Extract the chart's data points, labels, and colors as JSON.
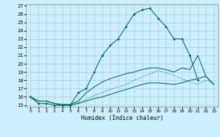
{
  "xlabel": "Humidex (Indice chaleur)",
  "bg_color": "#cceeff",
  "grid_color": "#aacccc",
  "line_color": "#006666",
  "xlim": [
    -0.5,
    23.5
  ],
  "ylim": [
    14.8,
    27.2
  ],
  "xticks": [
    0,
    1,
    2,
    3,
    4,
    5,
    6,
    7,
    8,
    9,
    10,
    11,
    12,
    13,
    14,
    15,
    16,
    17,
    18,
    19,
    20,
    21,
    22,
    23
  ],
  "yticks": [
    15,
    16,
    17,
    18,
    19,
    20,
    21,
    22,
    23,
    24,
    25,
    26,
    27
  ],
  "line1_x": [
    0,
    1,
    2,
    3,
    4,
    5,
    6,
    7,
    8,
    9,
    10,
    11,
    12,
    13,
    14,
    15,
    16,
    17,
    18,
    19,
    20,
    21
  ],
  "line1_y": [
    16,
    15.2,
    15.2,
    15,
    15,
    15,
    16.5,
    17,
    19,
    21,
    22.2,
    23,
    24.5,
    26,
    26.5,
    26.7,
    25.5,
    24.5,
    23,
    23,
    21,
    18
  ],
  "line2_x": [
    0,
    1,
    2,
    3,
    4,
    5,
    6,
    7,
    8,
    9,
    10,
    11,
    12,
    13,
    14,
    15,
    16,
    17,
    18,
    19,
    20,
    21,
    22,
    23
  ],
  "line2_y": [
    16,
    15.5,
    15.5,
    15.2,
    15.1,
    15.1,
    15.5,
    16.5,
    17.2,
    17.8,
    18.2,
    18.5,
    18.8,
    19.0,
    19.3,
    19.5,
    19.5,
    19.3,
    19.0,
    19.5,
    19.3,
    21.0,
    18.5,
    17.5
  ],
  "line3_x": [
    0,
    1,
    2,
    3,
    4,
    5,
    6,
    7,
    8,
    9,
    10,
    11,
    12,
    13,
    14,
    15,
    16,
    17,
    18,
    19,
    20,
    21,
    22,
    23
  ],
  "line3_y": [
    16,
    15.5,
    15.5,
    15.2,
    15.0,
    15.0,
    15.2,
    15.5,
    15.8,
    16.0,
    16.3,
    16.6,
    16.9,
    17.2,
    17.5,
    17.7,
    17.7,
    17.6,
    17.5,
    17.7,
    18.0,
    18.2,
    18.5,
    17.5
  ],
  "line4_x": [
    0,
    1,
    2,
    3,
    4,
    5,
    6,
    7,
    8,
    9,
    10,
    11,
    12,
    13,
    14,
    15,
    16,
    17,
    18,
    19,
    20,
    21,
    22,
    23
  ],
  "line4_y": [
    16,
    15.5,
    15.5,
    15.2,
    15.0,
    15.0,
    15.3,
    15.7,
    16.2,
    16.5,
    16.9,
    17.2,
    17.5,
    18.0,
    18.4,
    18.8,
    19.2,
    18.9,
    18.6,
    18.2,
    17.8,
    17.5,
    18.0,
    17.7
  ]
}
